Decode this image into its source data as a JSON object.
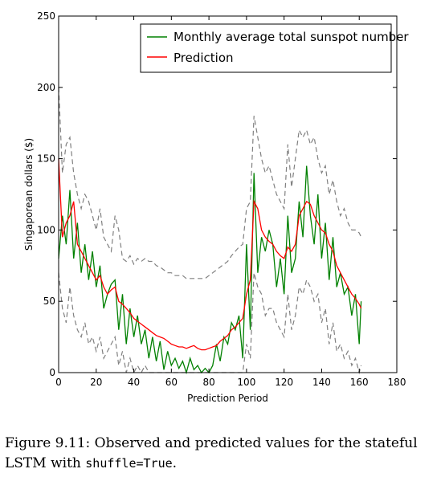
{
  "chart_data": {
    "type": "line",
    "xlabel": "Prediction Period",
    "ylabel": "Singaporean dollars ($)",
    "xlim": [
      0,
      180
    ],
    "ylim": [
      0,
      250
    ],
    "xticks": [
      0,
      20,
      40,
      60,
      80,
      100,
      120,
      140,
      160,
      180
    ],
    "yticks": [
      0,
      50,
      100,
      150,
      200,
      250
    ],
    "legend_position": "top-right",
    "grid": false,
    "series": [
      {
        "name": "Monthly average total sunspot number",
        "color": "#008000",
        "style": "solid",
        "x": [
          0,
          2,
          4,
          6,
          8,
          10,
          12,
          14,
          16,
          18,
          20,
          22,
          24,
          26,
          28,
          30,
          32,
          34,
          36,
          38,
          40,
          42,
          44,
          46,
          48,
          50,
          52,
          54,
          56,
          58,
          60,
          62,
          64,
          66,
          68,
          70,
          72,
          74,
          76,
          78,
          80,
          82,
          84,
          86,
          88,
          90,
          92,
          94,
          96,
          98,
          100,
          102,
          104,
          106,
          108,
          110,
          112,
          114,
          116,
          118,
          120,
          122,
          124,
          126,
          128,
          130,
          132,
          134,
          136,
          138,
          140,
          142,
          144,
          146,
          148,
          150,
          152,
          154,
          156,
          158,
          160,
          161
        ],
        "y": [
          80,
          110,
          90,
          128,
          80,
          105,
          70,
          90,
          65,
          85,
          60,
          75,
          45,
          55,
          62,
          65,
          30,
          55,
          20,
          45,
          25,
          40,
          20,
          30,
          10,
          25,
          8,
          22,
          2,
          15,
          5,
          10,
          3,
          8,
          0,
          10,
          2,
          5,
          0,
          3,
          0,
          5,
          20,
          8,
          25,
          20,
          35,
          30,
          40,
          10,
          90,
          30,
          140,
          70,
          95,
          85,
          100,
          90,
          60,
          80,
          55,
          110,
          70,
          80,
          120,
          95,
          145,
          110,
          90,
          125,
          80,
          105,
          65,
          95,
          60,
          70,
          55,
          60,
          40,
          55,
          20,
          50
        ]
      },
      {
        "name": "Prediction",
        "color": "#ff0000",
        "style": "solid",
        "x": [
          0,
          2,
          4,
          6,
          8,
          10,
          12,
          14,
          16,
          18,
          20,
          22,
          24,
          26,
          28,
          30,
          32,
          34,
          36,
          38,
          40,
          42,
          44,
          46,
          48,
          50,
          52,
          54,
          56,
          58,
          60,
          62,
          64,
          66,
          68,
          70,
          72,
          74,
          76,
          78,
          80,
          82,
          84,
          86,
          88,
          90,
          92,
          94,
          96,
          98,
          100,
          102,
          104,
          106,
          108,
          110,
          112,
          114,
          116,
          118,
          120,
          122,
          124,
          126,
          128,
          130,
          132,
          134,
          136,
          138,
          140,
          142,
          144,
          146,
          148,
          150,
          152,
          154,
          156,
          158,
          160,
          161
        ],
        "y": [
          150,
          95,
          105,
          110,
          120,
          90,
          85,
          80,
          75,
          70,
          65,
          68,
          60,
          55,
          58,
          60,
          50,
          48,
          45,
          42,
          38,
          36,
          34,
          32,
          30,
          28,
          26,
          25,
          24,
          22,
          20,
          19,
          18,
          18,
          17,
          18,
          19,
          17,
          16,
          16,
          17,
          18,
          19,
          22,
          24,
          26,
          30,
          32,
          35,
          38,
          55,
          65,
          120,
          115,
          100,
          95,
          92,
          90,
          85,
          82,
          80,
          88,
          85,
          90,
          110,
          115,
          120,
          118,
          110,
          105,
          100,
          98,
          90,
          85,
          75,
          70,
          65,
          60,
          55,
          52,
          48,
          45
        ]
      },
      {
        "name": "",
        "color": "#808080",
        "style": "dashed",
        "x": [
          0,
          2,
          4,
          6,
          8,
          10,
          12,
          14,
          16,
          18,
          20,
          22,
          24,
          26,
          28,
          30,
          32,
          34,
          36,
          38,
          40,
          42,
          44,
          46,
          48,
          50,
          52,
          54,
          56,
          58,
          60,
          62,
          64,
          66,
          68,
          70,
          72,
          74,
          76,
          78,
          80,
          82,
          84,
          86,
          88,
          90,
          92,
          94,
          96,
          98,
          100,
          102,
          104,
          106,
          108,
          110,
          112,
          114,
          116,
          118,
          120,
          122,
          124,
          126,
          128,
          130,
          132,
          134,
          136,
          138,
          140,
          142,
          144,
          146,
          148,
          150,
          152,
          154,
          156,
          158,
          160,
          161
        ],
        "y": [
          200,
          140,
          160,
          165,
          140,
          125,
          115,
          125,
          120,
          110,
          100,
          115,
          95,
          90,
          85,
          110,
          100,
          80,
          78,
          82,
          76,
          80,
          78,
          80,
          78,
          78,
          75,
          74,
          72,
          70,
          70,
          68,
          68,
          68,
          66,
          66,
          66,
          66,
          66,
          66,
          68,
          70,
          72,
          74,
          76,
          78,
          82,
          85,
          88,
          90,
          115,
          120,
          180,
          165,
          150,
          140,
          145,
          135,
          125,
          120,
          115,
          160,
          130,
          150,
          170,
          165,
          170,
          160,
          165,
          150,
          140,
          145,
          125,
          135,
          120,
          110,
          115,
          105,
          100,
          100,
          98,
          95
        ]
      },
      {
        "name": "",
        "color": "#808080",
        "style": "dashed",
        "x": [
          0,
          2,
          4,
          6,
          8,
          10,
          12,
          14,
          16,
          18,
          20,
          22,
          24,
          26,
          28,
          30,
          32,
          34,
          36,
          38,
          40,
          42,
          44,
          46,
          48,
          50,
          52,
          54,
          56,
          58,
          60,
          62,
          64,
          66,
          68,
          70,
          72,
          74,
          76,
          78,
          80,
          82,
          84,
          86,
          88,
          90,
          92,
          94,
          96,
          98,
          100,
          102,
          104,
          106,
          108,
          110,
          112,
          114,
          116,
          118,
          120,
          122,
          124,
          126,
          128,
          130,
          132,
          134,
          136,
          138,
          140,
          142,
          144,
          146,
          148,
          150,
          152,
          154,
          156,
          158,
          160,
          161
        ],
        "y": [
          70,
          45,
          35,
          60,
          40,
          30,
          25,
          35,
          20,
          25,
          15,
          25,
          10,
          15,
          20,
          25,
          5,
          15,
          0,
          10,
          0,
          5,
          0,
          5,
          0,
          0,
          0,
          0,
          0,
          0,
          0,
          0,
          0,
          0,
          0,
          0,
          0,
          0,
          0,
          0,
          0,
          0,
          0,
          0,
          0,
          0,
          0,
          0,
          0,
          0,
          20,
          10,
          70,
          60,
          55,
          40,
          45,
          45,
          35,
          30,
          25,
          55,
          30,
          40,
          60,
          55,
          65,
          60,
          50,
          55,
          35,
          45,
          20,
          35,
          15,
          20,
          10,
          15,
          5,
          10,
          0,
          5
        ]
      }
    ]
  },
  "caption": {
    "prefix": "Figure 9.11:  Observed and predicted values for the stateful LSTM with ",
    "code": "shuffle=True",
    "suffix": "."
  }
}
